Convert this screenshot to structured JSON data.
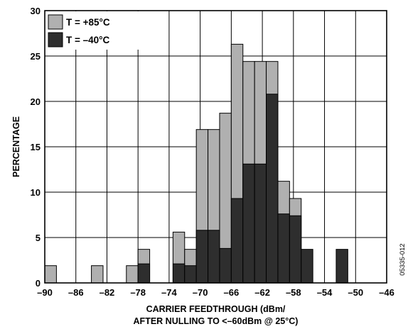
{
  "chart_data": {
    "type": "bar",
    "title": "",
    "xlabel": [
      "CARRIER FEEDTHROUGH (dBm/",
      "AFTER NULLING TO <–60dBm @ 25°C)"
    ],
    "ylabel": "PERCENTAGE",
    "xlim": [
      -90,
      -46
    ],
    "ylim": [
      0,
      30
    ],
    "x_ticks": [
      -90,
      -86,
      -82,
      -78,
      -74,
      -70,
      -66,
      -62,
      -58,
      -54,
      -50,
      -46
    ],
    "x_tick_labels": [
      "–90",
      "–86",
      "–82",
      "–78",
      "–74",
      "–70",
      "–66",
      "–62",
      "–58",
      "–54",
      "–50",
      "–46"
    ],
    "y_ticks": [
      0,
      5,
      10,
      15,
      20,
      25,
      30
    ],
    "y_tick_labels": [
      "0",
      "5",
      "10",
      "15",
      "20",
      "25",
      "30"
    ],
    "grid": true,
    "bin_width": 1.5,
    "bin_starts": [
      -90,
      -88.5,
      -87,
      -85.5,
      -84,
      -82.5,
      -81,
      -79.5,
      -78,
      -76.5,
      -75,
      -73.5,
      -72,
      -70.5,
      -69,
      -67.5,
      -66,
      -64.5,
      -63,
      -61.5,
      -60,
      -58.5,
      -57,
      -55.5,
      -54,
      -52.5,
      -51,
      -49.5,
      -48
    ],
    "series": [
      {
        "name": "T = +85°C",
        "color": "#b0b0b0",
        "values": [
          1.9,
          0,
          0,
          0,
          1.9,
          0,
          0,
          1.9,
          3.7,
          0,
          0,
          5.6,
          3.7,
          16.9,
          16.9,
          18.7,
          26.3,
          24.4,
          24.4,
          24.4,
          11.2,
          9.3,
          0,
          0,
          0,
          0,
          0,
          0,
          0
        ]
      },
      {
        "name": "T = –40°C",
        "color": "#2e2e2e",
        "values": [
          0,
          0,
          0,
          0,
          0,
          0,
          0,
          0,
          2.1,
          0,
          0,
          2.1,
          1.9,
          5.8,
          5.8,
          3.8,
          9.3,
          13.1,
          13.1,
          20.8,
          7.6,
          7.4,
          3.7,
          0,
          0,
          3.7,
          0,
          0,
          0
        ]
      }
    ],
    "legend_position": "top-left",
    "figure_id": "05335-012"
  }
}
